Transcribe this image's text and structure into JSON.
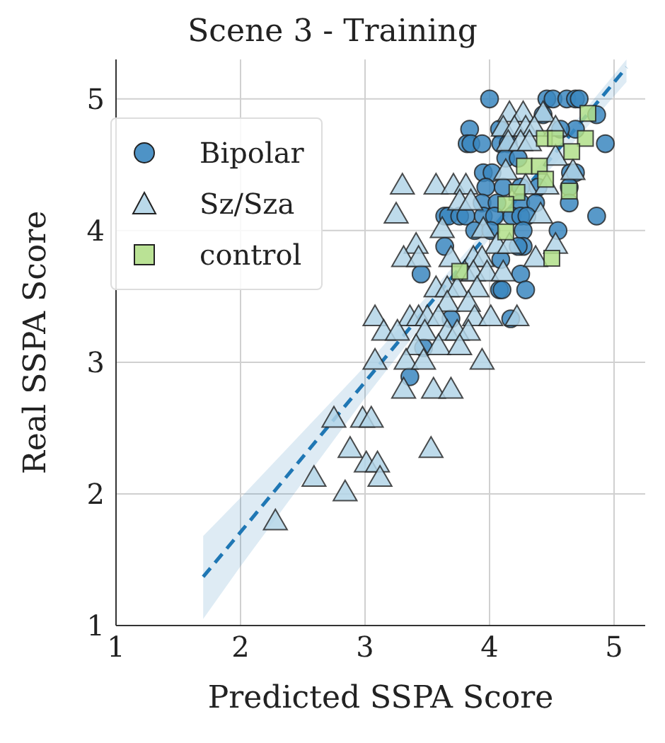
{
  "chart_data": {
    "type": "scatter",
    "title": "Scene 3 - Training",
    "xlabel": "Predicted SSPA Score",
    "ylabel": "Real SSPA Score",
    "xlim": [
      1,
      5.25
    ],
    "ylim": [
      1,
      5.3
    ],
    "xticks": [
      1,
      2,
      3,
      4,
      5
    ],
    "yticks": [
      1,
      2,
      3,
      4,
      5
    ],
    "grid": true,
    "legend": "top left",
    "series": [
      {
        "name": "Bipolar",
        "color": "#3b87c0",
        "marker": "circle",
        "x": [
          4.0,
          4.46,
          4.51,
          4.62,
          4.69,
          4.72,
          4.86,
          4.43,
          3.84,
          4.08,
          4.69,
          4.57,
          3.82,
          3.85,
          3.94,
          4.09,
          4.15,
          4.93,
          4.13,
          4.23,
          3.95,
          4.02,
          4.65,
          4.69,
          3.97,
          4.11,
          4.25,
          4.64,
          4.39,
          3.94,
          4.06,
          4.25,
          4.37,
          4.64,
          3.64,
          3.67,
          3.76,
          3.81,
          3.95,
          4.04,
          4.18,
          4.25,
          4.3,
          4.86,
          3.88,
          4.01,
          4.27,
          4.55,
          3.64,
          4.27,
          4.23,
          4.09,
          3.45,
          4.25,
          4.08,
          4.1,
          4.29,
          3.69,
          4.17,
          3.47,
          3.36
        ],
        "values": [
          5.0,
          5.0,
          5.0,
          5.0,
          5.0,
          5.0,
          4.88,
          4.88,
          4.77,
          4.77,
          4.77,
          4.77,
          4.66,
          4.66,
          4.66,
          4.66,
          4.66,
          4.66,
          4.55,
          4.55,
          4.44,
          4.44,
          4.44,
          4.44,
          4.33,
          4.33,
          4.33,
          4.33,
          4.33,
          4.21,
          4.21,
          4.21,
          4.21,
          4.21,
          4.11,
          4.11,
          4.11,
          4.11,
          4.11,
          4.11,
          4.11,
          4.11,
          4.11,
          4.11,
          4.0,
          4.0,
          4.0,
          4.0,
          3.88,
          3.88,
          3.88,
          3.78,
          3.67,
          3.67,
          3.55,
          3.55,
          3.55,
          3.33,
          3.33,
          3.11,
          2.89
        ]
      },
      {
        "name": "Sz/Sza",
        "color": "#b3d5e8",
        "marker": "triangle",
        "x": [
          4.16,
          4.27,
          4.43,
          4.11,
          4.2,
          4.29,
          4.36,
          4.53,
          4.15,
          4.25,
          4.32,
          4.53,
          4.13,
          4.67,
          3.3,
          3.57,
          3.71,
          3.81,
          4.29,
          4.46,
          3.76,
          3.85,
          3.25,
          4.41,
          3.62,
          3.95,
          3.41,
          4.06,
          4.16,
          4.53,
          3.31,
          3.43,
          3.69,
          3.87,
          3.94,
          4.37,
          3.8,
          3.87,
          3.98,
          4.11,
          3.57,
          3.66,
          3.74,
          3.9,
          3.66,
          3.83,
          3.08,
          3.36,
          3.43,
          3.5,
          3.59,
          3.88,
          4.01,
          4.22,
          3.15,
          3.26,
          3.48,
          3.66,
          3.74,
          3.83,
          3.41,
          3.59,
          3.76,
          3.08,
          3.33,
          3.47,
          3.94,
          3.31,
          3.55,
          3.69,
          2.75,
          2.98,
          3.05,
          2.88,
          3.53,
          3.01,
          3.1,
          2.59,
          3.12,
          2.84,
          2.28
        ],
        "values": [
          4.88,
          4.88,
          4.88,
          4.77,
          4.77,
          4.77,
          4.77,
          4.77,
          4.66,
          4.66,
          4.66,
          4.55,
          4.44,
          4.44,
          4.33,
          4.33,
          4.33,
          4.33,
          4.33,
          4.33,
          4.21,
          4.21,
          4.11,
          4.11,
          4.0,
          4.0,
          3.88,
          3.88,
          3.88,
          3.88,
          3.78,
          3.78,
          3.78,
          3.78,
          3.78,
          3.78,
          3.67,
          3.67,
          3.67,
          3.67,
          3.55,
          3.55,
          3.55,
          3.55,
          3.44,
          3.44,
          3.33,
          3.33,
          3.33,
          3.33,
          3.33,
          3.33,
          3.33,
          3.33,
          3.22,
          3.22,
          3.22,
          3.22,
          3.22,
          3.22,
          3.11,
          3.11,
          3.11,
          3.0,
          3.0,
          3.0,
          3.0,
          2.78,
          2.78,
          2.78,
          2.56,
          2.56,
          2.56,
          2.33,
          2.33,
          2.22,
          2.22,
          2.11,
          2.11,
          2.0,
          1.78
        ]
      },
      {
        "name": "control",
        "color": "#b2df8a",
        "marker": "square",
        "x": [
          4.79,
          4.44,
          4.53,
          4.77,
          4.66,
          4.28,
          4.4,
          4.45,
          4.64,
          4.22,
          4.13,
          4.13,
          4.5,
          3.76
        ],
        "values": [
          4.89,
          4.7,
          4.7,
          4.7,
          4.6,
          4.49,
          4.49,
          4.39,
          4.3,
          4.29,
          4.2,
          3.99,
          3.79,
          3.69
        ]
      },
      {
        "type": "line",
        "color": "#1f77b4",
        "line_style": "dashed",
        "marker": "none",
        "x": [
          1.7,
          2,
          3,
          4,
          5.1
        ],
        "values": [
          1.37,
          1.71,
          2.85,
          3.99,
          5.24
        ],
        "lower": [
          1.05,
          1.45,
          2.73,
          3.94,
          5.13
        ],
        "upper": [
          1.68,
          1.97,
          2.97,
          4.04,
          5.3
        ]
      }
    ]
  }
}
